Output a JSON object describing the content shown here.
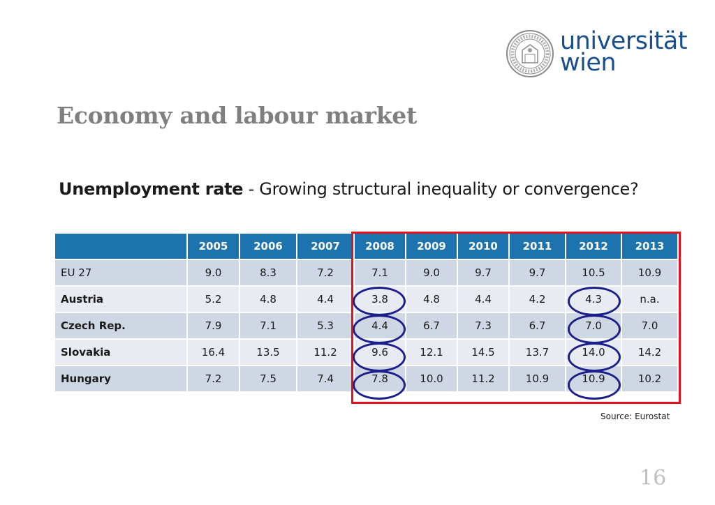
{
  "logo": {
    "line1": "universität",
    "line2": "wien"
  },
  "title": "Economy and labour market",
  "subtitle": {
    "strong": "Unemployment rate",
    "rest": " - Growing structural inequality or convergence?"
  },
  "table": {
    "years": [
      "2005",
      "2006",
      "2007",
      "2008",
      "2009",
      "2010",
      "2011",
      "2012",
      "2013"
    ],
    "rows": [
      {
        "country": "EU 27",
        "values": [
          "9.0",
          "8.3",
          "7.2",
          "7.1",
          "9.0",
          "9.7",
          "9.7",
          "10.5",
          "10.9"
        ]
      },
      {
        "country": "Austria",
        "values": [
          "5.2",
          "4.8",
          "4.4",
          "3.8",
          "4.8",
          "4.4",
          "4.2",
          "4.3",
          "n.a."
        ]
      },
      {
        "country": "Czech Rep.",
        "values": [
          "7.9",
          "7.1",
          "5.3",
          "4.4",
          "6.7",
          "7.3",
          "6.7",
          "7.0",
          "7.0"
        ]
      },
      {
        "country": "Slovakia",
        "values": [
          "16.4",
          "13.5",
          "11.2",
          "9.6",
          "12.1",
          "14.5",
          "13.7",
          "14.0",
          "14.2"
        ]
      },
      {
        "country": "Hungary",
        "values": [
          "7.2",
          "7.5",
          "7.4",
          "7.8",
          "10.0",
          "11.2",
          "10.9",
          "10.9",
          "10.2"
        ]
      }
    ]
  },
  "source": "Source: Eurostat",
  "page_number": "16",
  "colors": {
    "header_bg": "#1c73ae",
    "row_dark": "#cfd6e4",
    "row_light": "#e8ebf1",
    "highlight_box": "#e8101a",
    "circle": "#1c1e8c",
    "title": "#7f7f7f",
    "logo": "#1a4f8f"
  }
}
